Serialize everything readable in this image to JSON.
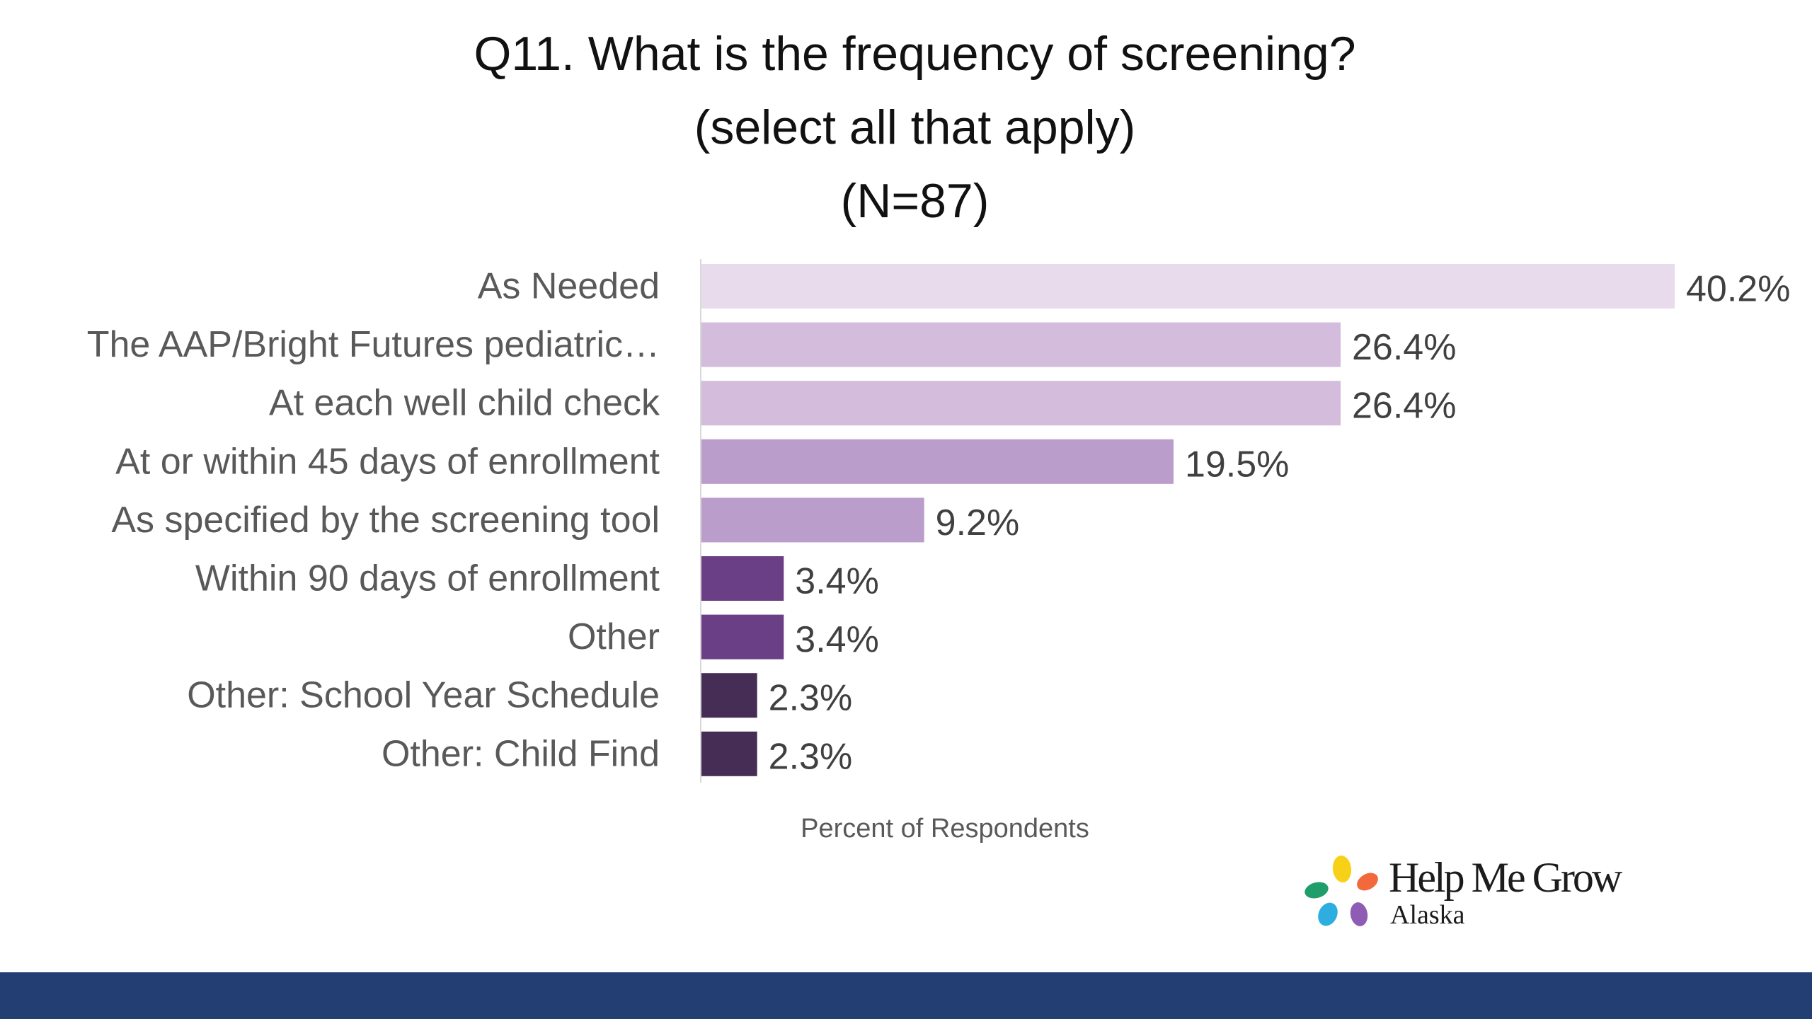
{
  "chart_data": {
    "type": "bar",
    "orientation": "horizontal",
    "title": "Q11. What is the frequency of screening?",
    "subtitle": "(select all that apply)",
    "sample_size": "(N=87)",
    "xlabel": "Percent of Respondents",
    "ylabel": "",
    "categories": [
      "As Needed",
      "The AAP/Bright Futures pediatric…",
      "At each well child check",
      "At or within 45 days of enrollment",
      "As specified by the screening tool",
      "Within 90 days of enrollment",
      "Other",
      "Other: School Year Schedule",
      "Other: Child Find"
    ],
    "values": [
      40.2,
      26.4,
      26.4,
      19.5,
      9.2,
      3.4,
      3.4,
      2.3,
      2.3
    ],
    "value_labels": [
      "40.2%",
      "26.4%",
      "26.4%",
      "19.5%",
      "9.2%",
      "3.4%",
      "3.4%",
      "2.3%",
      "2.3%"
    ],
    "bar_colors": [
      "#e8dcec",
      "#d3bcdc",
      "#d3bcdc",
      "#bb9dcb",
      "#bb9dcb",
      "#6b3f85",
      "#6b3f85",
      "#452d55",
      "#452d55"
    ],
    "xlim": [
      0,
      40.2
    ],
    "grid": false,
    "legend": "none"
  },
  "branding": {
    "logo_name": "Help Me Grow",
    "logo_region": "Alaska",
    "logo_petal_colors": [
      "#f7d117",
      "#f26a3b",
      "#8e5bb5",
      "#2eaee0",
      "#1f9e6b"
    ]
  },
  "colors": {
    "footer_band": "#233e72",
    "axis_line": "#d9d9d9"
  }
}
